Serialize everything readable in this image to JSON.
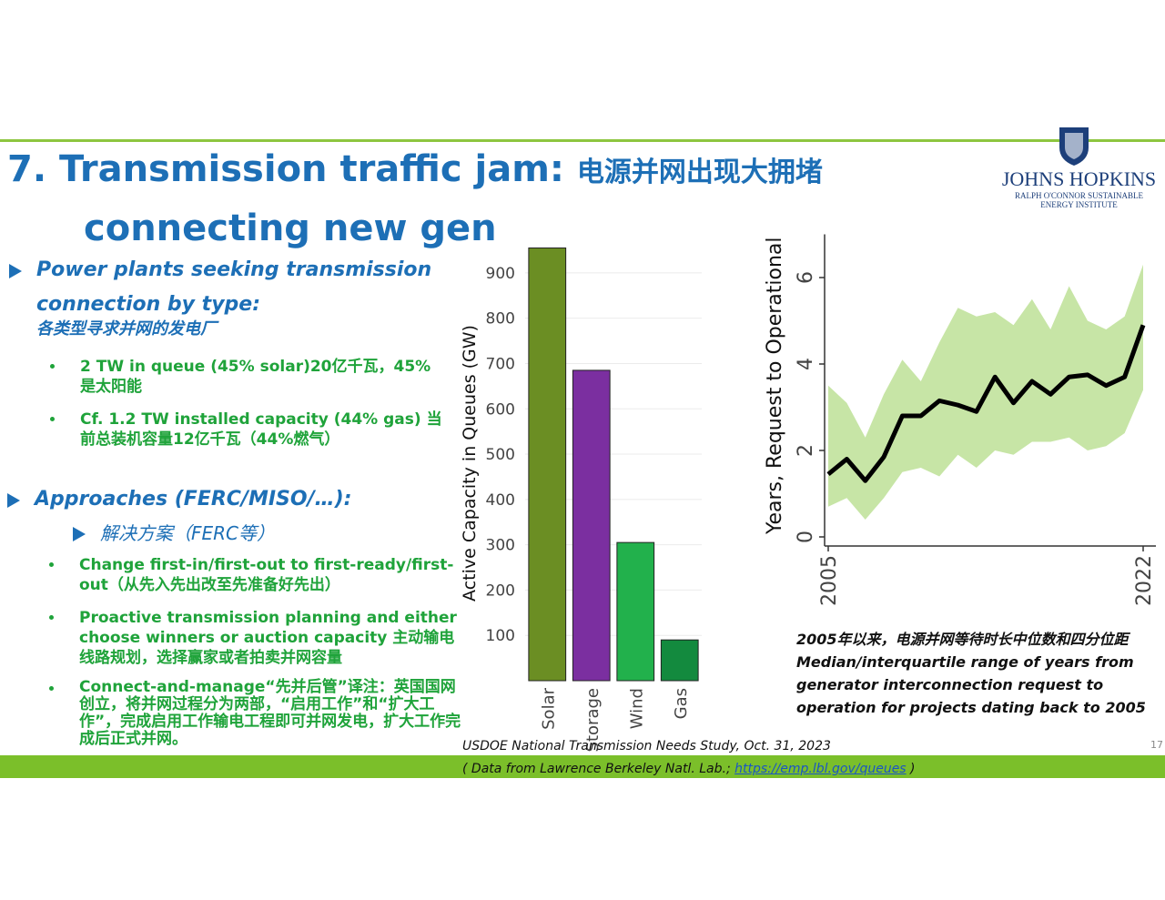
{
  "slide": {
    "title_en": "7.   Transmission traffic jam:",
    "title_cn": "电源并网出现大拥堵",
    "title_line2": "connecting new gen",
    "logo": [
      "JOHNS HOPKINS",
      "RALPH O'CONNOR SUSTAINABLE",
      "ENERGY INSTITUTE"
    ],
    "sections": [
      {
        "heading": "Power plants seeking transmission connection by type:",
        "heading_cn": "各类型寻求并网的发电厂",
        "items": [
          "2 TW in queue (45% solar)20亿千瓦，45%是太阳能",
          "Cf.  1.2 TW installed capacity (44% gas) 当前总装机容量12亿千瓦（44%燃气）"
        ]
      },
      {
        "heading": "Approaches (FERC/MISO/…):",
        "subheading": "解决方案（FERC等）",
        "items": [
          "Change first-in/first-out to first-ready/first-out（从先入先出改至先准备好先出）",
          "Proactive transmission planning and either choose winners or auction capacity 主动输电线路规划，选择赢家或者拍卖并网容量",
          "Connect-and-manage“先并后管”译注：英国国网创立，将并网过程分为两部，“启用工作”和“扩大工作”，完成启用工作输电工程即可并网发电，扩大工作完成后正式并网。"
        ]
      }
    ],
    "caption_cn": "2005年以来，电源并网等待时长中位数和四分位距",
    "caption_en": "Median/interquartile range of years from generator interconnection request to operation for projects dating back to 2005",
    "source_1": "USDOE National Transmission Needs Study, Oct. 31, 2023",
    "source_2": "( Data from Lawrence Berkeley Natl. Lab.; ",
    "source_link": "https://emp.lbl.gov/queues",
    "source_end": " )",
    "page_number": "17"
  },
  "chart_data": [
    {
      "type": "bar",
      "y_label": "Active Capacity in Queues (GW)",
      "categories": [
        "Solar",
        "Storage",
        "Wind",
        "Gas"
      ],
      "values": [
        955,
        685,
        305,
        90
      ],
      "colors": [
        "#6b8e23",
        "#7b2fa0",
        "#22b14c",
        "#138a3e"
      ],
      "ylim": [
        0,
        960
      ],
      "yticks": [
        100,
        200,
        300,
        400,
        500,
        600,
        700,
        800,
        900
      ],
      "grid": true
    },
    {
      "type": "line",
      "y_label": "Years, Request to Operational",
      "x": [
        2005,
        2006,
        2007,
        2008,
        2009,
        2010,
        2011,
        2012,
        2013,
        2014,
        2015,
        2016,
        2017,
        2018,
        2019,
        2020,
        2021,
        2022
      ],
      "series": [
        {
          "name": "median",
          "color": "#000000",
          "values": [
            1.45,
            1.8,
            1.3,
            1.85,
            2.8,
            2.8,
            3.15,
            3.05,
            2.9,
            3.7,
            3.1,
            3.6,
            3.3,
            3.7,
            3.75,
            3.5,
            3.7,
            4.9
          ]
        },
        {
          "name": "lower quartile",
          "color": "#c7e5a6",
          "values": [
            0.7,
            0.9,
            0.4,
            0.9,
            1.5,
            1.6,
            1.4,
            1.9,
            1.6,
            2.0,
            1.9,
            2.2,
            2.2,
            2.3,
            2.0,
            2.1,
            2.4,
            3.4
          ]
        },
        {
          "name": "upper quartile",
          "color": "#c7e5a6",
          "values": [
            3.5,
            3.1,
            2.3,
            3.3,
            4.1,
            3.6,
            4.5,
            5.3,
            5.1,
            5.2,
            4.9,
            5.5,
            4.8,
            5.8,
            5.0,
            4.8,
            5.1,
            6.3
          ]
        }
      ],
      "xlim": [
        2005,
        2022
      ],
      "xticks": [
        2005,
        2022
      ],
      "ylim": [
        0,
        7
      ],
      "yticks": [
        0,
        2,
        4,
        6
      ]
    }
  ]
}
